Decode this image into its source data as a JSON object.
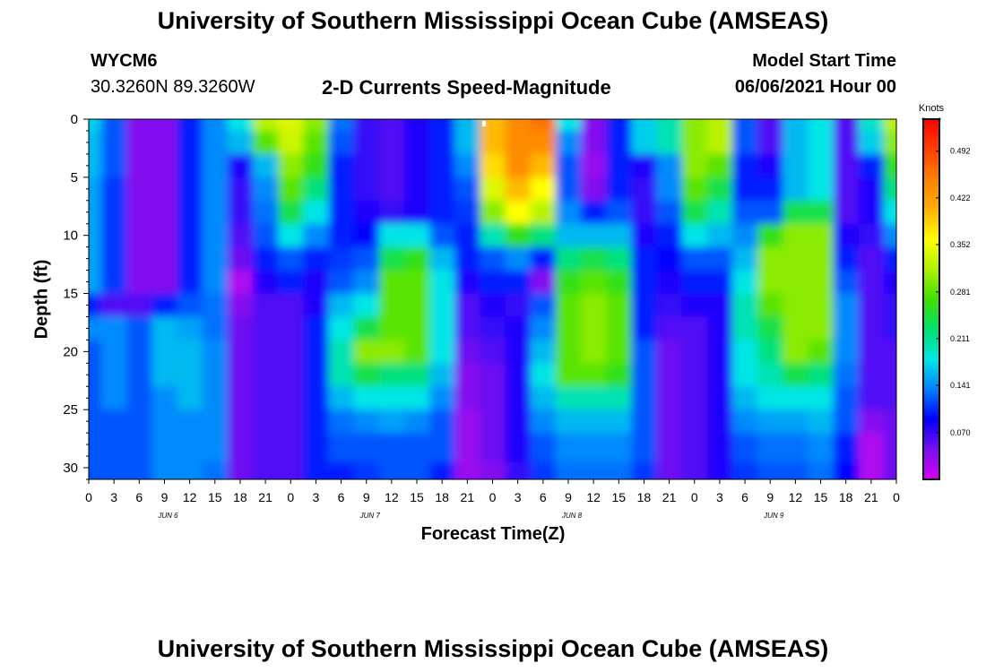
{
  "header": {
    "title": "University of Southern Mississippi Ocean Cube (AMSEAS)",
    "station_id": "WYCM6",
    "coordinates": "30.3260N  89.3260W",
    "subtitle": "2-D Currents Speed-Magnitude",
    "model_start_label": "Model Start Time",
    "model_start_value": "06/06/2021 Hour 00"
  },
  "footer": {
    "title": "University of Southern Mississippi Ocean Cube (AMSEAS)"
  },
  "chart_data": {
    "type": "heatmap",
    "xlabel": "Forecast Time(Z)",
    "ylabel": "Depth (ft)",
    "x_tick_labels": [
      "0",
      "3",
      "6",
      "9",
      "12",
      "15",
      "18",
      "21",
      "0",
      "3",
      "6",
      "9",
      "12",
      "15",
      "18",
      "21",
      "0",
      "3",
      "6",
      "9",
      "12",
      "15",
      "18",
      "21",
      "0",
      "3",
      "6",
      "9",
      "12",
      "15",
      "18",
      "21",
      "0"
    ],
    "xlim": [
      0,
      96
    ],
    "day_labels": [
      {
        "label": "JUN 6",
        "x": 9
      },
      {
        "label": "JUN 7",
        "x": 33
      },
      {
        "label": "JUN 8",
        "x": 57
      },
      {
        "label": "JUN 9",
        "x": 81
      }
    ],
    "y_tick_labels": [
      "0",
      "5",
      "10",
      "15",
      "20",
      "25",
      "30"
    ],
    "ylim": [
      0,
      31
    ],
    "y_inverted": true,
    "colorbar": {
      "title": "Knots",
      "tick_labels": [
        "0.070",
        "0.141",
        "0.211",
        "0.281",
        "0.352",
        "0.422",
        "0.492"
      ],
      "range": [
        0.0,
        0.54
      ]
    },
    "colormap": [
      "#d800f0",
      "#7a10f0",
      "#0000ff",
      "#0080ff",
      "#00e6e6",
      "#00e070",
      "#40e000",
      "#b0f000",
      "#ffff00",
      "#ffb000",
      "#ff8000",
      "#ff4000",
      "#ff0000"
    ],
    "notes": "Values in knots; columns are hours (0-96) at ~3 h steps, rows are depth in ft (0-31).",
    "hours": [
      0,
      3,
      6,
      9,
      12,
      15,
      18,
      21,
      24,
      27,
      30,
      33,
      36,
      39,
      42,
      45,
      48,
      51,
      54,
      57,
      60,
      63,
      66,
      69,
      72,
      75,
      78,
      81,
      84,
      87,
      90,
      93,
      96
    ],
    "depths": [
      0,
      2,
      4,
      6,
      8,
      10,
      12,
      14,
      16,
      18,
      20,
      22,
      24,
      26,
      28,
      31
    ],
    "values": [
      [
        0.17,
        0.12,
        0.04,
        0.04,
        0.1,
        0.14,
        0.18,
        0.32,
        0.34,
        0.3,
        0.13,
        0.07,
        0.06,
        0.08,
        0.1,
        0.16,
        0.4,
        0.44,
        0.46,
        0.18,
        0.04,
        0.1,
        0.17,
        0.2,
        0.3,
        0.32,
        0.12,
        0.06,
        0.16,
        0.18,
        0.06,
        0.19,
        0.32
      ],
      [
        0.16,
        0.12,
        0.04,
        0.04,
        0.1,
        0.14,
        0.16,
        0.28,
        0.33,
        0.28,
        0.12,
        0.07,
        0.06,
        0.08,
        0.1,
        0.16,
        0.4,
        0.44,
        0.44,
        0.14,
        0.04,
        0.1,
        0.17,
        0.2,
        0.3,
        0.32,
        0.12,
        0.06,
        0.16,
        0.18,
        0.06,
        0.17,
        0.3
      ],
      [
        0.16,
        0.12,
        0.04,
        0.04,
        0.1,
        0.14,
        0.08,
        0.16,
        0.3,
        0.26,
        0.1,
        0.07,
        0.06,
        0.08,
        0.1,
        0.14,
        0.38,
        0.44,
        0.4,
        0.12,
        0.03,
        0.1,
        0.08,
        0.14,
        0.3,
        0.28,
        0.1,
        0.08,
        0.16,
        0.18,
        0.06,
        0.1,
        0.26
      ],
      [
        0.15,
        0.11,
        0.04,
        0.04,
        0.1,
        0.14,
        0.07,
        0.14,
        0.28,
        0.22,
        0.1,
        0.07,
        0.06,
        0.08,
        0.1,
        0.12,
        0.34,
        0.4,
        0.36,
        0.12,
        0.04,
        0.1,
        0.07,
        0.14,
        0.28,
        0.24,
        0.1,
        0.1,
        0.16,
        0.18,
        0.06,
        0.08,
        0.22
      ],
      [
        0.15,
        0.11,
        0.04,
        0.04,
        0.1,
        0.14,
        0.07,
        0.13,
        0.24,
        0.18,
        0.1,
        0.08,
        0.07,
        0.08,
        0.1,
        0.11,
        0.3,
        0.36,
        0.32,
        0.14,
        0.1,
        0.12,
        0.07,
        0.12,
        0.24,
        0.2,
        0.12,
        0.12,
        0.24,
        0.24,
        0.06,
        0.08,
        0.18
      ],
      [
        0.15,
        0.11,
        0.04,
        0.04,
        0.1,
        0.14,
        0.06,
        0.12,
        0.18,
        0.14,
        0.1,
        0.09,
        0.18,
        0.18,
        0.12,
        0.1,
        0.2,
        0.26,
        0.22,
        0.16,
        0.16,
        0.16,
        0.08,
        0.1,
        0.18,
        0.16,
        0.14,
        0.26,
        0.3,
        0.3,
        0.08,
        0.07,
        0.14
      ],
      [
        0.15,
        0.11,
        0.04,
        0.04,
        0.1,
        0.14,
        0.05,
        0.1,
        0.12,
        0.1,
        0.11,
        0.12,
        0.24,
        0.26,
        0.16,
        0.1,
        0.12,
        0.14,
        0.1,
        0.22,
        0.24,
        0.22,
        0.1,
        0.09,
        0.12,
        0.12,
        0.16,
        0.3,
        0.3,
        0.3,
        0.1,
        0.06,
        0.1
      ],
      [
        0.15,
        0.11,
        0.04,
        0.04,
        0.1,
        0.14,
        0.02,
        0.08,
        0.1,
        0.08,
        0.12,
        0.14,
        0.28,
        0.28,
        0.18,
        0.08,
        0.1,
        0.1,
        0.04,
        0.26,
        0.28,
        0.26,
        0.1,
        0.08,
        0.1,
        0.1,
        0.18,
        0.3,
        0.3,
        0.3,
        0.12,
        0.06,
        0.08
      ],
      [
        0.1,
        0.06,
        0.06,
        0.1,
        0.12,
        0.13,
        0.04,
        0.06,
        0.06,
        0.08,
        0.16,
        0.18,
        0.28,
        0.28,
        0.18,
        0.06,
        0.08,
        0.07,
        0.12,
        0.28,
        0.3,
        0.28,
        0.1,
        0.07,
        0.08,
        0.08,
        0.2,
        0.28,
        0.3,
        0.3,
        0.14,
        0.06,
        0.07
      ],
      [
        0.14,
        0.14,
        0.12,
        0.16,
        0.15,
        0.13,
        0.05,
        0.06,
        0.06,
        0.1,
        0.18,
        0.24,
        0.28,
        0.28,
        0.18,
        0.06,
        0.07,
        0.08,
        0.14,
        0.28,
        0.3,
        0.28,
        0.1,
        0.06,
        0.06,
        0.08,
        0.2,
        0.24,
        0.3,
        0.3,
        0.14,
        0.06,
        0.07
      ],
      [
        0.12,
        0.14,
        0.12,
        0.16,
        0.16,
        0.14,
        0.05,
        0.06,
        0.06,
        0.1,
        0.2,
        0.3,
        0.3,
        0.28,
        0.18,
        0.05,
        0.06,
        0.08,
        0.16,
        0.28,
        0.3,
        0.28,
        0.12,
        0.05,
        0.06,
        0.08,
        0.18,
        0.22,
        0.3,
        0.28,
        0.14,
        0.06,
        0.06
      ],
      [
        0.12,
        0.14,
        0.12,
        0.16,
        0.16,
        0.14,
        0.05,
        0.06,
        0.06,
        0.1,
        0.2,
        0.24,
        0.22,
        0.22,
        0.16,
        0.04,
        0.05,
        0.08,
        0.18,
        0.28,
        0.28,
        0.26,
        0.12,
        0.05,
        0.06,
        0.08,
        0.18,
        0.2,
        0.24,
        0.22,
        0.13,
        0.06,
        0.06
      ],
      [
        0.12,
        0.14,
        0.12,
        0.14,
        0.16,
        0.14,
        0.05,
        0.06,
        0.06,
        0.1,
        0.16,
        0.18,
        0.18,
        0.18,
        0.14,
        0.04,
        0.05,
        0.08,
        0.16,
        0.2,
        0.2,
        0.2,
        0.12,
        0.05,
        0.06,
        0.08,
        0.16,
        0.18,
        0.18,
        0.18,
        0.12,
        0.06,
        0.06
      ],
      [
        0.12,
        0.12,
        0.12,
        0.14,
        0.14,
        0.14,
        0.05,
        0.06,
        0.06,
        0.1,
        0.13,
        0.14,
        0.15,
        0.14,
        0.12,
        0.03,
        0.05,
        0.08,
        0.14,
        0.16,
        0.16,
        0.16,
        0.12,
        0.05,
        0.06,
        0.08,
        0.14,
        0.15,
        0.15,
        0.16,
        0.12,
        0.04,
        0.05
      ],
      [
        0.12,
        0.12,
        0.12,
        0.14,
        0.14,
        0.14,
        0.05,
        0.06,
        0.06,
        0.1,
        0.12,
        0.12,
        0.12,
        0.12,
        0.12,
        0.03,
        0.05,
        0.08,
        0.12,
        0.14,
        0.14,
        0.14,
        0.12,
        0.05,
        0.06,
        0.08,
        0.12,
        0.13,
        0.13,
        0.14,
        0.1,
        0.02,
        0.05
      ],
      [
        0.12,
        0.12,
        0.12,
        0.14,
        0.14,
        0.13,
        0.05,
        0.06,
        0.06,
        0.1,
        0.1,
        0.11,
        0.12,
        0.12,
        0.1,
        0.03,
        0.04,
        0.07,
        0.11,
        0.13,
        0.13,
        0.13,
        0.11,
        0.05,
        0.06,
        0.08,
        0.11,
        0.12,
        0.12,
        0.13,
        0.09,
        0.02,
        0.05
      ]
    ]
  }
}
